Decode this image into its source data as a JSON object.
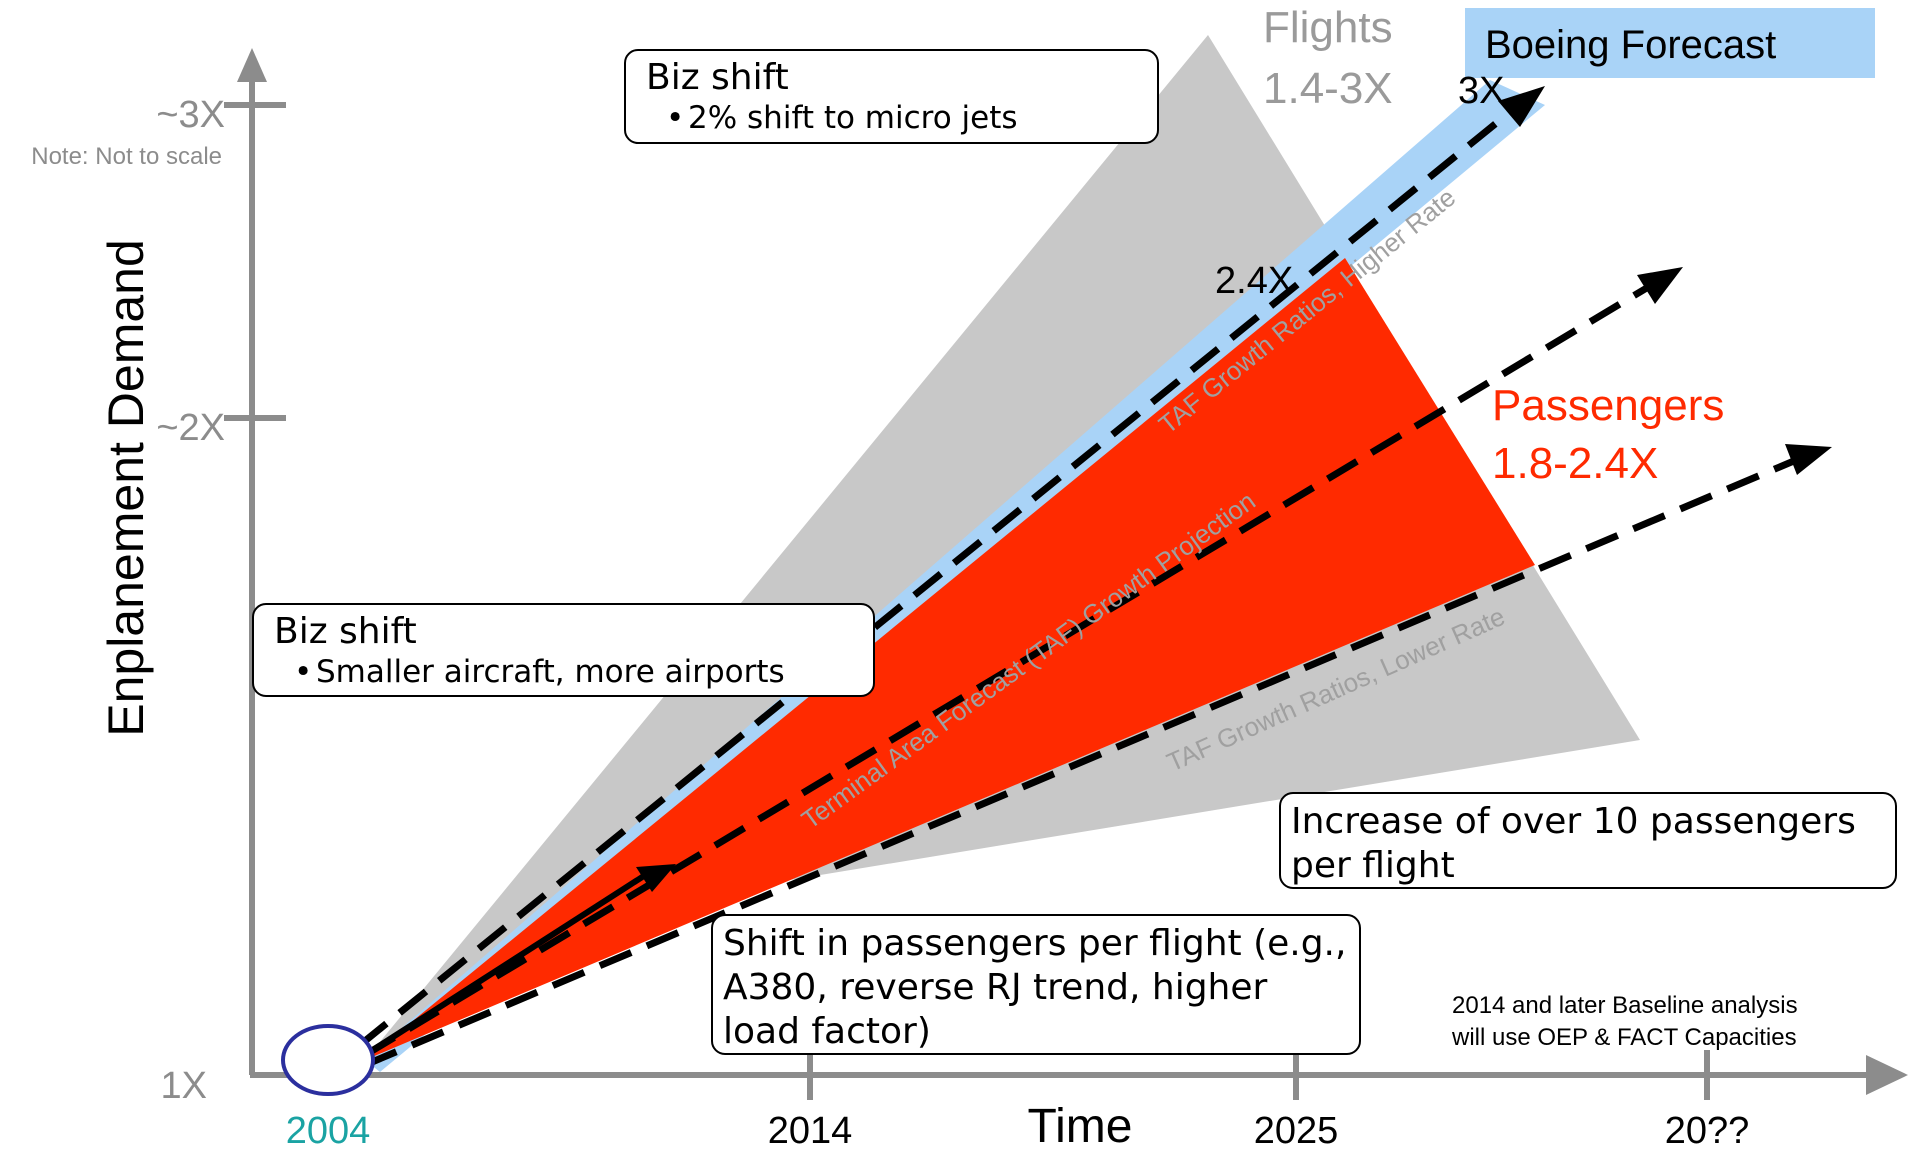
{
  "axes": {
    "y_label": "Enplanement Demand",
    "x_label": "Time",
    "y_ticks": [
      "1X",
      "~2X",
      "~3X"
    ],
    "x_ticks": [
      "2004",
      "2014",
      "2025",
      "20??"
    ],
    "note": "Note: Not to scale"
  },
  "labels": {
    "flights_title": "Flights",
    "flights_range": "1.4-3X",
    "boeing": "Boeing Forecast",
    "three_x": "3X",
    "two_four_x": "2.4X",
    "passengers_title": "Passengers",
    "passengers_range": "1.8-2.4X",
    "taf_higher": "TAF Growth Ratios, Higher Rate",
    "taf_projection": "Terminal Area Forecast (TAF) Growth Projection",
    "taf_lower": "TAF Growth Ratios, Lower Rate"
  },
  "boxes": {
    "biz_top_title": "Biz shift",
    "biz_top_bullet": "2% shift to micro jets",
    "biz_mid_title": "Biz shift",
    "biz_mid_bullet": "Smaller aircraft, more airports",
    "increase": "Increase of over 10 passengers per flight",
    "shift": "Shift in passengers per flight (e.g., A380, reverse RJ trend, higher load factor)"
  },
  "baseline_note": [
    "2014 and later Baseline analysis",
    "will use OEP & FACT Capacities"
  ],
  "colors": {
    "axis": "#8c8c8c",
    "flights_fill": "#c8c8c8",
    "boeing_fill": "#a9d3f7",
    "passengers_fill": "#ff2a00",
    "passengers_text": "#ff2a00",
    "origin_circle": "#2b2f9e",
    "origin_label": "#1aa3a3"
  }
}
